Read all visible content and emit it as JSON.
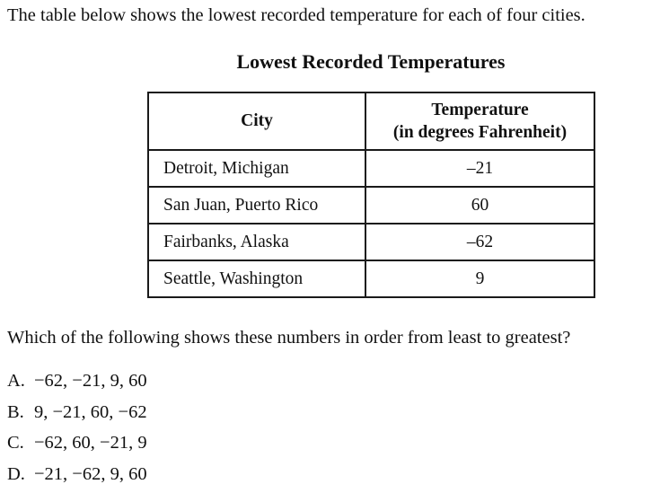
{
  "intro_text": "The table below shows the lowest recorded temperature for each of four cities.",
  "table": {
    "title": "Lowest Recorded Temperatures",
    "headers": {
      "city": "City",
      "temp_line1": "Temperature",
      "temp_line2": "(in degrees Fahrenheit)"
    },
    "rows": [
      {
        "city": "Detroit, Michigan",
        "temp": "–21"
      },
      {
        "city": "San Juan, Puerto Rico",
        "temp": "60"
      },
      {
        "city": "Fairbanks, Alaska",
        "temp": "–62"
      },
      {
        "city": "Seattle, Washington",
        "temp": "9"
      }
    ]
  },
  "question": "Which of the following shows these numbers in order from least to greatest?",
  "choices": [
    {
      "letter": "A.",
      "text": "−62, −21,  9,  60"
    },
    {
      "letter": "B.",
      "text": "9, −21,  60, −62"
    },
    {
      "letter": "C.",
      "text": "−62,  60, −21,  9"
    },
    {
      "letter": "D.",
      "text": "−21, −62,  9,  60"
    }
  ]
}
